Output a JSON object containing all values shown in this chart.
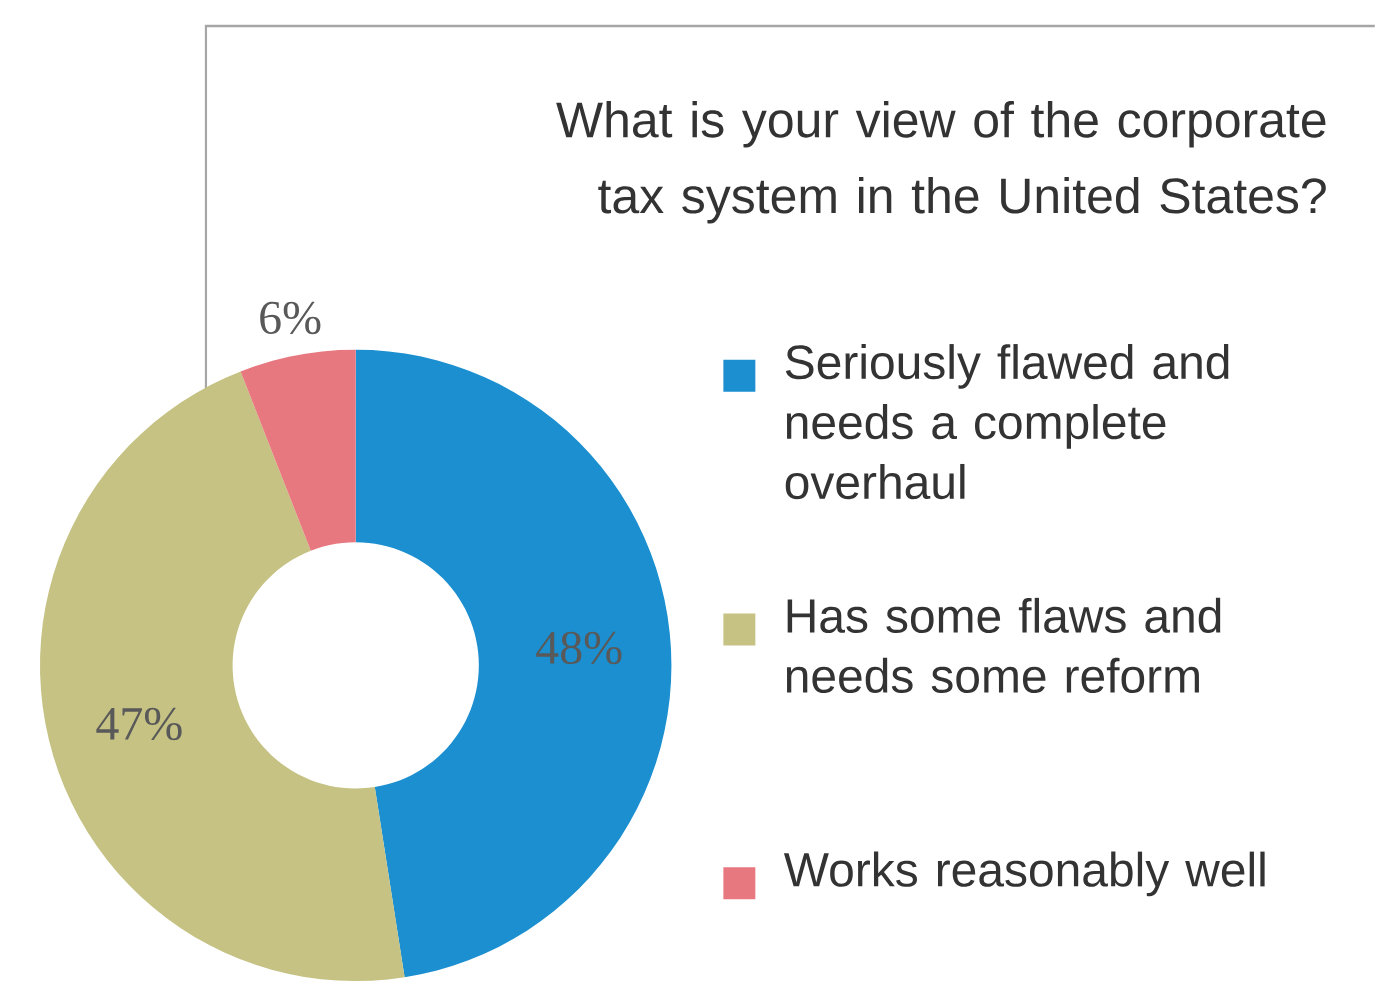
{
  "chart_data": {
    "type": "donut",
    "title": "What is your view of the corporate tax system in the United States?",
    "categories": [
      "Seriously flawed and needs a complete overhaul",
      "Has some flaws and needs some reform",
      "Works reasonably well"
    ],
    "values": [
      48,
      47,
      6
    ],
    "value_labels": [
      "48%",
      "47%",
      "6%"
    ],
    "colors": [
      "#1b8fd0",
      "#c5c283",
      "#e8787f"
    ],
    "legend": "right"
  }
}
